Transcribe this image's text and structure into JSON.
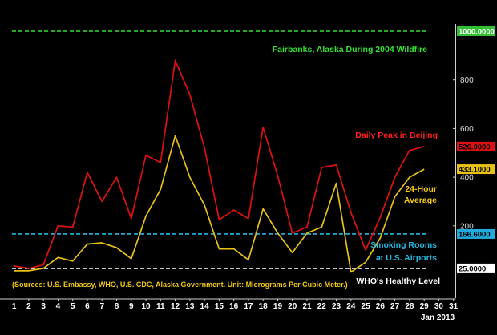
{
  "chart_data": {
    "type": "line",
    "x": [
      1,
      2,
      3,
      4,
      5,
      6,
      7,
      8,
      9,
      10,
      11,
      12,
      13,
      14,
      15,
      16,
      17,
      18,
      19,
      20,
      21,
      22,
      23,
      24,
      25,
      26,
      27,
      28,
      29
    ],
    "x_ticks": [
      "1",
      "2",
      "3",
      "4",
      "5",
      "6",
      "7",
      "8",
      "9",
      "10",
      "11",
      "12",
      "13",
      "14",
      "15",
      "16",
      "17",
      "18",
      "19",
      "20",
      "21",
      "22",
      "23",
      "24",
      "25",
      "26",
      "27",
      "28",
      "29",
      "30",
      "31"
    ],
    "x_unit_label": "Jan 2013",
    "y_ticks": [
      "200",
      "400",
      "600",
      "800"
    ],
    "ylim": [
      0,
      1000
    ],
    "grid": false,
    "series": [
      {
        "name": "Daily Peak in Beijing",
        "color": "#e01010",
        "values": [
          35,
          25,
          40,
          200,
          195,
          420,
          300,
          400,
          230,
          490,
          460,
          880,
          740,
          520,
          225,
          265,
          230,
          605,
          405,
          170,
          195,
          440,
          450,
          255,
          100,
          235,
          400,
          510,
          526
        ],
        "last_value_label": "526.0000"
      },
      {
        "name": "24-Hour Average",
        "color": "#e6c012",
        "values": [
          15,
          15,
          25,
          70,
          55,
          125,
          130,
          110,
          65,
          240,
          350,
          570,
          400,
          285,
          105,
          105,
          60,
          270,
          170,
          90,
          170,
          195,
          375,
          10,
          50,
          150,
          320,
          400,
          433.1
        ],
        "last_value_label": "433.1000"
      }
    ],
    "reference_lines": [
      {
        "label": "Fairbanks, Alaska During 2004 Wildfire",
        "value": 1000,
        "value_label": "1000.0000",
        "color": "#33e033",
        "tag_bg": "#33c033",
        "tag_fg": "#ffffff"
      },
      {
        "label": "Smoking Rooms at U.S. Airports",
        "value": 166.6,
        "value_label": "166.6000",
        "color": "#22b8e0",
        "tag_bg": "#22aadd",
        "tag_fg": "#000000"
      },
      {
        "label": "WHO's Healthy Level",
        "value": 25,
        "value_label": "25.0000",
        "color": "#ffffff",
        "tag_bg": "#ffffff",
        "tag_fg": "#000000"
      }
    ],
    "annotations": {
      "fairbanks": "Fairbanks, Alaska During 2004 Wildfire",
      "beijing_peak": "Daily Peak in Beijing",
      "average_line1": "24-Hour",
      "average_line2": "Average",
      "smoking_line1": "Smoking Rooms",
      "smoking_line2": "at U.S. Airports",
      "who": "WHO's Healthy Level",
      "sources": "(Sources: U.S. Embassy, WHO, U.S. CDC, Alaska Government. Unit: Micrograms Per Cubic Meter.)"
    },
    "annotation_colors": {
      "fairbanks": "#33e033",
      "beijing_peak": "#ff2020",
      "average": "#f0c814",
      "smoking": "#22b8e0",
      "who": "#ffffff",
      "sources": "#f0c814"
    }
  }
}
